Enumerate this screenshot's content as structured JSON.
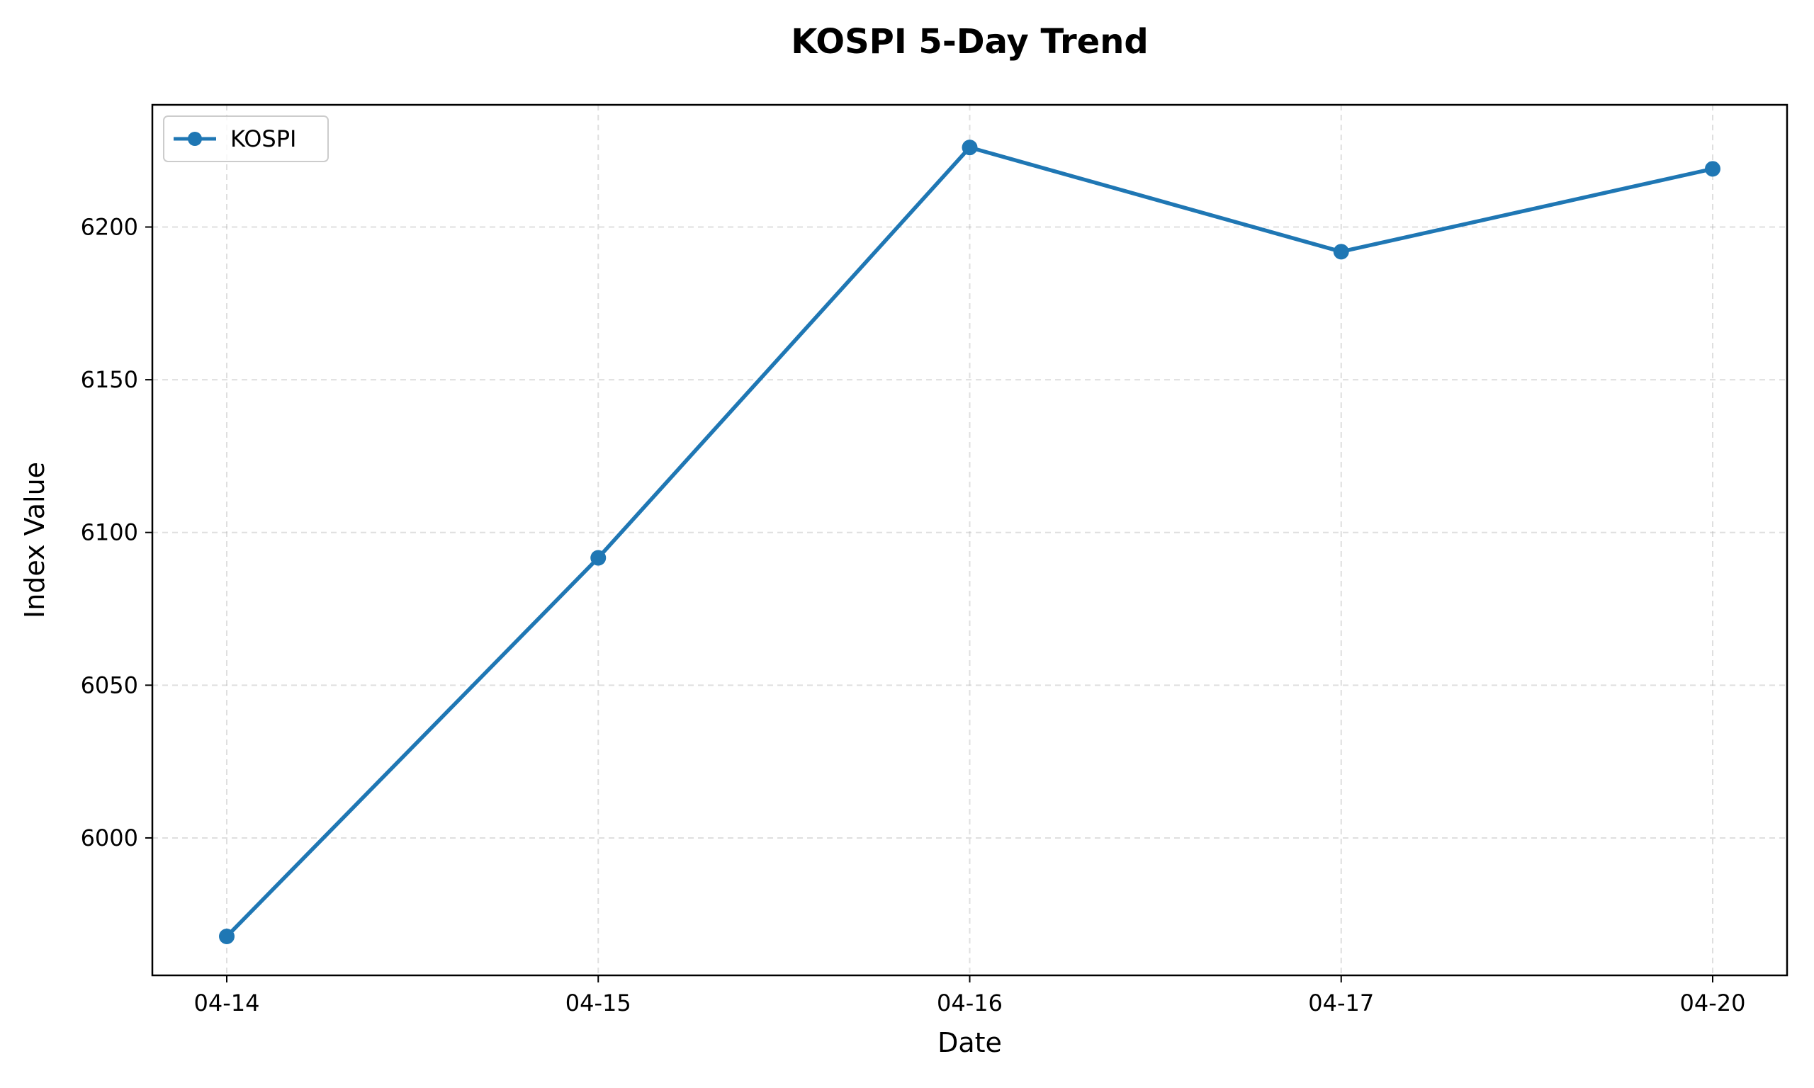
{
  "chart_data": {
    "type": "line",
    "title": "KOSPI 5-Day Trend",
    "xlabel": "Date",
    "ylabel": "Index Value",
    "categories": [
      "04-14",
      "04-15",
      "04-16",
      "04-17",
      "04-20"
    ],
    "series": [
      {
        "name": "KOSPI",
        "values": [
          5967.75,
          6091.69,
          6226.05,
          6191.92,
          6219.05
        ],
        "color": "#1f77b4"
      }
    ],
    "ylim": [
      5955,
      6240
    ],
    "yticks": [
      6000,
      6050,
      6100,
      6150,
      6200
    ],
    "grid": true,
    "legend_position": "top-left"
  }
}
